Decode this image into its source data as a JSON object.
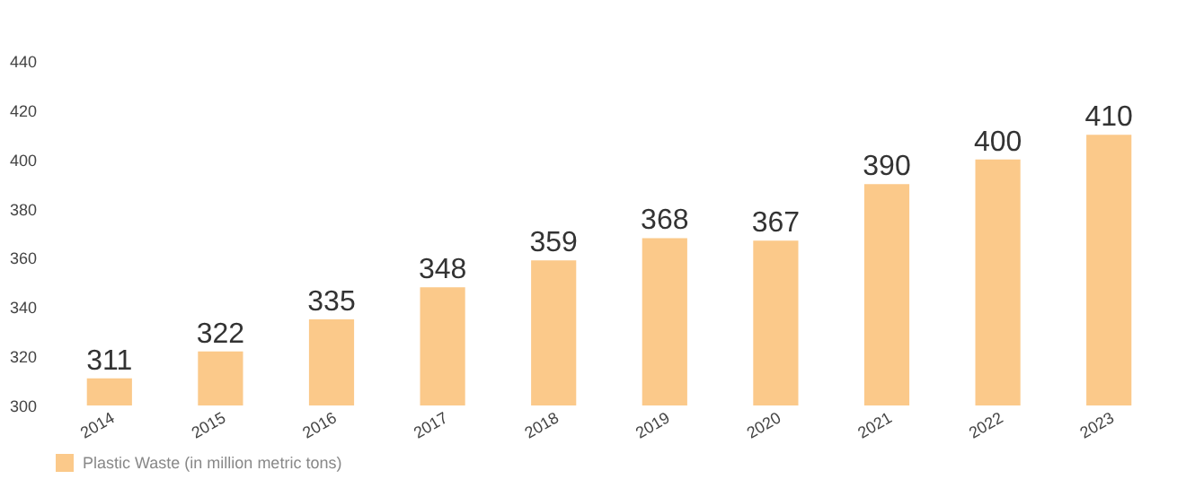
{
  "chart_data": {
    "type": "bar",
    "categories": [
      "2014",
      "2015",
      "2016",
      "2017",
      "2018",
      "2019",
      "2020",
      "2021",
      "2022",
      "2023"
    ],
    "series": [
      {
        "name": "Plastic Waste (in million metric tons)",
        "color": "#fbc98a",
        "values": [
          311,
          322,
          335,
          348,
          359,
          368,
          367,
          390,
          400,
          410
        ]
      }
    ],
    "ylim": [
      300,
      440
    ],
    "yticks": [
      300,
      320,
      340,
      360,
      380,
      400,
      420,
      440
    ],
    "data_labels": true,
    "grid": false,
    "legend": "bottom"
  }
}
